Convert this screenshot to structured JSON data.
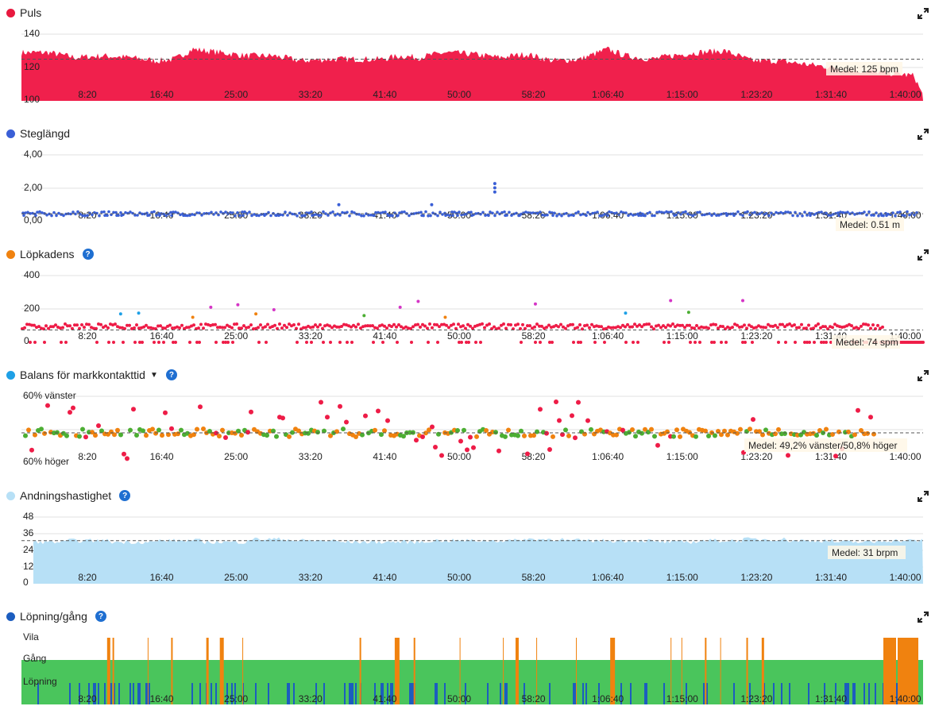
{
  "x_ticks": [
    "8:20",
    "16:40",
    "25:00",
    "33:20",
    "41:40",
    "50:00",
    "58:20",
    "1:06:40",
    "1:15:00",
    "1:23:20",
    "1:31:40",
    "1:40:00"
  ],
  "chart_data": [
    {
      "id": "puls",
      "type": "area",
      "title": "Puls",
      "color": "#f0204c",
      "yticks": [
        "140",
        "120",
        "100"
      ],
      "ylim": [
        100,
        140
      ],
      "average": 125,
      "average_label": "Medel: 125 bpm",
      "x": [
        0,
        3,
        6,
        9,
        12,
        15,
        17,
        19,
        22,
        25,
        28,
        31,
        34,
        37,
        40,
        42,
        44,
        47,
        50,
        53,
        56,
        59,
        62,
        65,
        67,
        70,
        72,
        75,
        78,
        81,
        84,
        87,
        90,
        93,
        96,
        99,
        100
      ],
      "values": [
        129,
        129,
        126,
        127,
        126,
        124,
        125,
        131,
        129,
        127,
        127,
        124,
        125,
        125,
        125,
        127,
        126,
        129,
        128,
        126,
        128,
        124,
        125,
        131,
        127,
        125,
        127,
        129,
        130,
        124,
        124,
        122,
        120,
        118,
        117,
        115,
        103
      ]
    },
    {
      "id": "steglangd",
      "type": "scatter",
      "title": "Steglängd",
      "color": "#3a5fd6",
      "yticks": [
        "4,00",
        "2,00",
        "0,00"
      ],
      "ylim": [
        0,
        4
      ],
      "average": 0.51,
      "average_label": "Medel: 0.51 m",
      "outliers": [
        [
          52.5,
          2.3
        ],
        [
          52.5,
          2.05
        ],
        [
          52.5,
          1.8
        ],
        [
          35.2,
          1.05
        ],
        [
          45.5,
          1.05
        ]
      ]
    },
    {
      "id": "lopkadens",
      "type": "scatter",
      "title": "Löpkadens",
      "color": "#f0820f",
      "yticks": [
        "400",
        "200",
        "0"
      ],
      "ylim": [
        0,
        400
      ],
      "average": 74,
      "average_label": "Medel: 74 spm",
      "series_colors": [
        "#ee1c47",
        "#d535c6",
        "#f0820f",
        "#1ea0e6",
        "#4cae33"
      ]
    },
    {
      "id": "balans",
      "type": "scatter",
      "title": "Balans för markkontakttid",
      "color": "#1ea0e6",
      "yticks": [
        "60% vänster",
        "60% höger"
      ],
      "average_label": "Medel: 49,2% vänster/50,8% höger",
      "series_colors": [
        "#ee1c47",
        "#f0820f",
        "#4cae33"
      ]
    },
    {
      "id": "andning",
      "type": "area",
      "title": "Andningshastighet",
      "color": "#b7e0f6",
      "yticks": [
        "48",
        "36",
        "24",
        "12",
        "0"
      ],
      "ylim": [
        0,
        48
      ],
      "average": 31,
      "average_label": "Medel: 31 brpm",
      "x": [
        0,
        5,
        10,
        15,
        20,
        25,
        30,
        35,
        40,
        45,
        50,
        55,
        60,
        65,
        70,
        75,
        80,
        85,
        90,
        95,
        100
      ],
      "values": [
        30,
        31,
        30,
        31,
        30,
        32,
        31,
        30,
        30,
        31,
        31,
        32,
        31,
        31,
        30,
        31,
        32,
        31,
        30,
        31,
        30
      ]
    },
    {
      "id": "lopning",
      "type": "area",
      "title": "Löpning/gång",
      "categories": [
        "Vila",
        "Gång",
        "Löpning"
      ],
      "series_colors": [
        "#f0820f",
        "#4ac55c",
        "#1c5dbf"
      ],
      "series": [
        {
          "name": "Vila",
          "color": "#f0820f"
        },
        {
          "name": "Gång",
          "color": "#4ac55c"
        },
        {
          "name": "Löpning",
          "color": "#1c5dbf"
        }
      ]
    }
  ],
  "icons": {
    "expand": "expand-icon",
    "help": "help-icon",
    "dropdown": "caret-down-icon"
  },
  "help_glyph": "?"
}
